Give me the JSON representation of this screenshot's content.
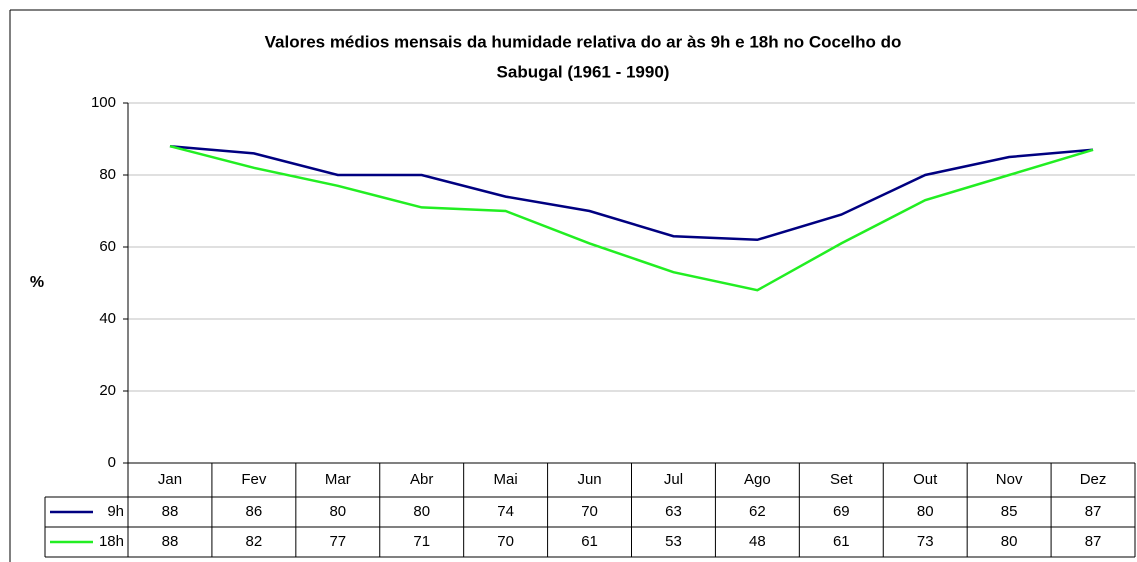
{
  "chart_data": {
    "type": "line",
    "title": [
      "Valores médios mensais da humidade relativa do ar às 9h e 18h no Cocelho do",
      "Sabugal (1961 - 1990)"
    ],
    "y_label": "%",
    "categories": [
      "Jan",
      "Fev",
      "Mar",
      "Abr",
      "Mai",
      "Jun",
      "Jul",
      "Ago",
      "Set",
      "Out",
      "Nov",
      "Dez"
    ],
    "series": [
      {
        "name": "9h",
        "color": "#000080",
        "values": [
          88,
          86,
          80,
          80,
          74,
          70,
          63,
          62,
          69,
          80,
          85,
          87
        ]
      },
      {
        "name": "18h",
        "color": "#22ee22",
        "values": [
          88,
          82,
          77,
          71,
          70,
          61,
          53,
          48,
          61,
          73,
          80,
          87
        ]
      }
    ],
    "ylim": [
      0,
      100
    ],
    "yticks": [
      0,
      20,
      40,
      60,
      80,
      100
    ],
    "grid": true,
    "data_table": true
  }
}
